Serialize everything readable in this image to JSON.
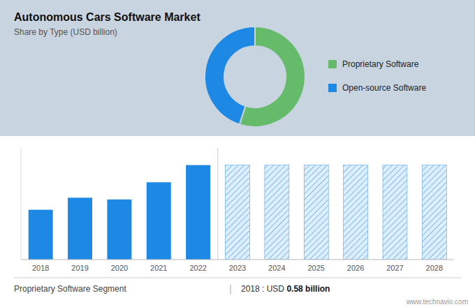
{
  "chart_data": [
    {
      "type": "pie",
      "title": "Autonomous Cars Software Market",
      "subtitle": "Share by Type (USD billion)",
      "categories": [
        "Proprietary Software",
        "Open-source Software"
      ],
      "values": [
        55,
        45
      ],
      "colors": [
        "#66bb6a",
        "#1e88e5"
      ],
      "legend": "right"
    },
    {
      "type": "bar",
      "categories": [
        "2018",
        "2019",
        "2020",
        "2021",
        "2022",
        "2023",
        "2024",
        "2025",
        "2026",
        "2027",
        "2028"
      ],
      "series": [
        {
          "color": "#1e88e5",
          "values": [
            0.58,
            0.72,
            0.7,
            0.9,
            1.1,
            null,
            null,
            null,
            null,
            null,
            null
          ]
        },
        {
          "color": "#ddeeff",
          "values": [
            null,
            null,
            null,
            null,
            null,
            1.1,
            1.1,
            1.1,
            1.1,
            1.1,
            1.1
          ]
        }
      ],
      "ylim": [
        0,
        1.3
      ],
      "grid": false,
      "tick_labels": "x",
      "annotations": [
        "Proprietary Software Segment",
        "|",
        "2018 : USD ",
        "0.58 billion",
        "www.technavio.com"
      ]
    }
  ]
}
